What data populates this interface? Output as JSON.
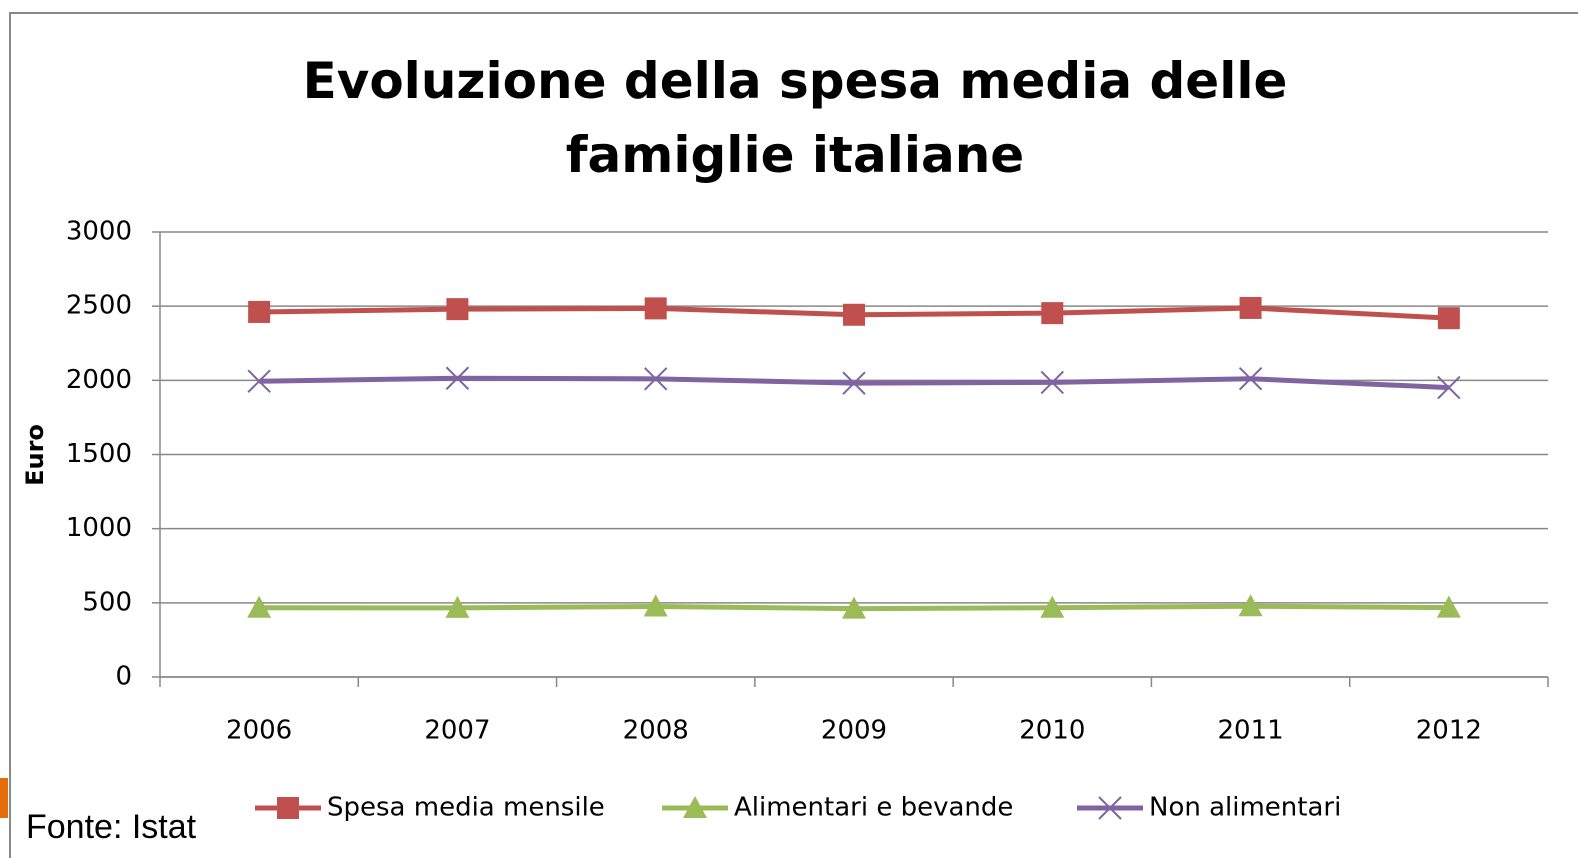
{
  "chart_data": {
    "type": "line",
    "title": "Evoluzione della spesa media delle famiglie italiane",
    "y_label": "Euro",
    "source": "Fonte: Istat",
    "categories": [
      "2006",
      "2007",
      "2008",
      "2009",
      "2010",
      "2011",
      "2012"
    ],
    "series": [
      {
        "name": "Spesa media mensile",
        "color": "#c0504d",
        "marker": "square",
        "values": [
          2461,
          2480,
          2485,
          2442,
          2453,
          2488,
          2419
        ]
      },
      {
        "name": "Alimentari e bevande",
        "color": "#9bbb59",
        "marker": "triangle",
        "values": [
          467,
          466,
          475,
          461,
          467,
          477,
          468
        ]
      },
      {
        "name": "Non alimentari",
        "color": "#8064a2",
        "marker": "x",
        "values": [
          1994,
          2014,
          2010,
          1981,
          1986,
          2011,
          1951
        ]
      }
    ],
    "ylim": [
      0,
      3000
    ],
    "yticks": [
      0,
      500,
      1000,
      1500,
      2000,
      2500,
      3000
    ],
    "grid": true
  }
}
